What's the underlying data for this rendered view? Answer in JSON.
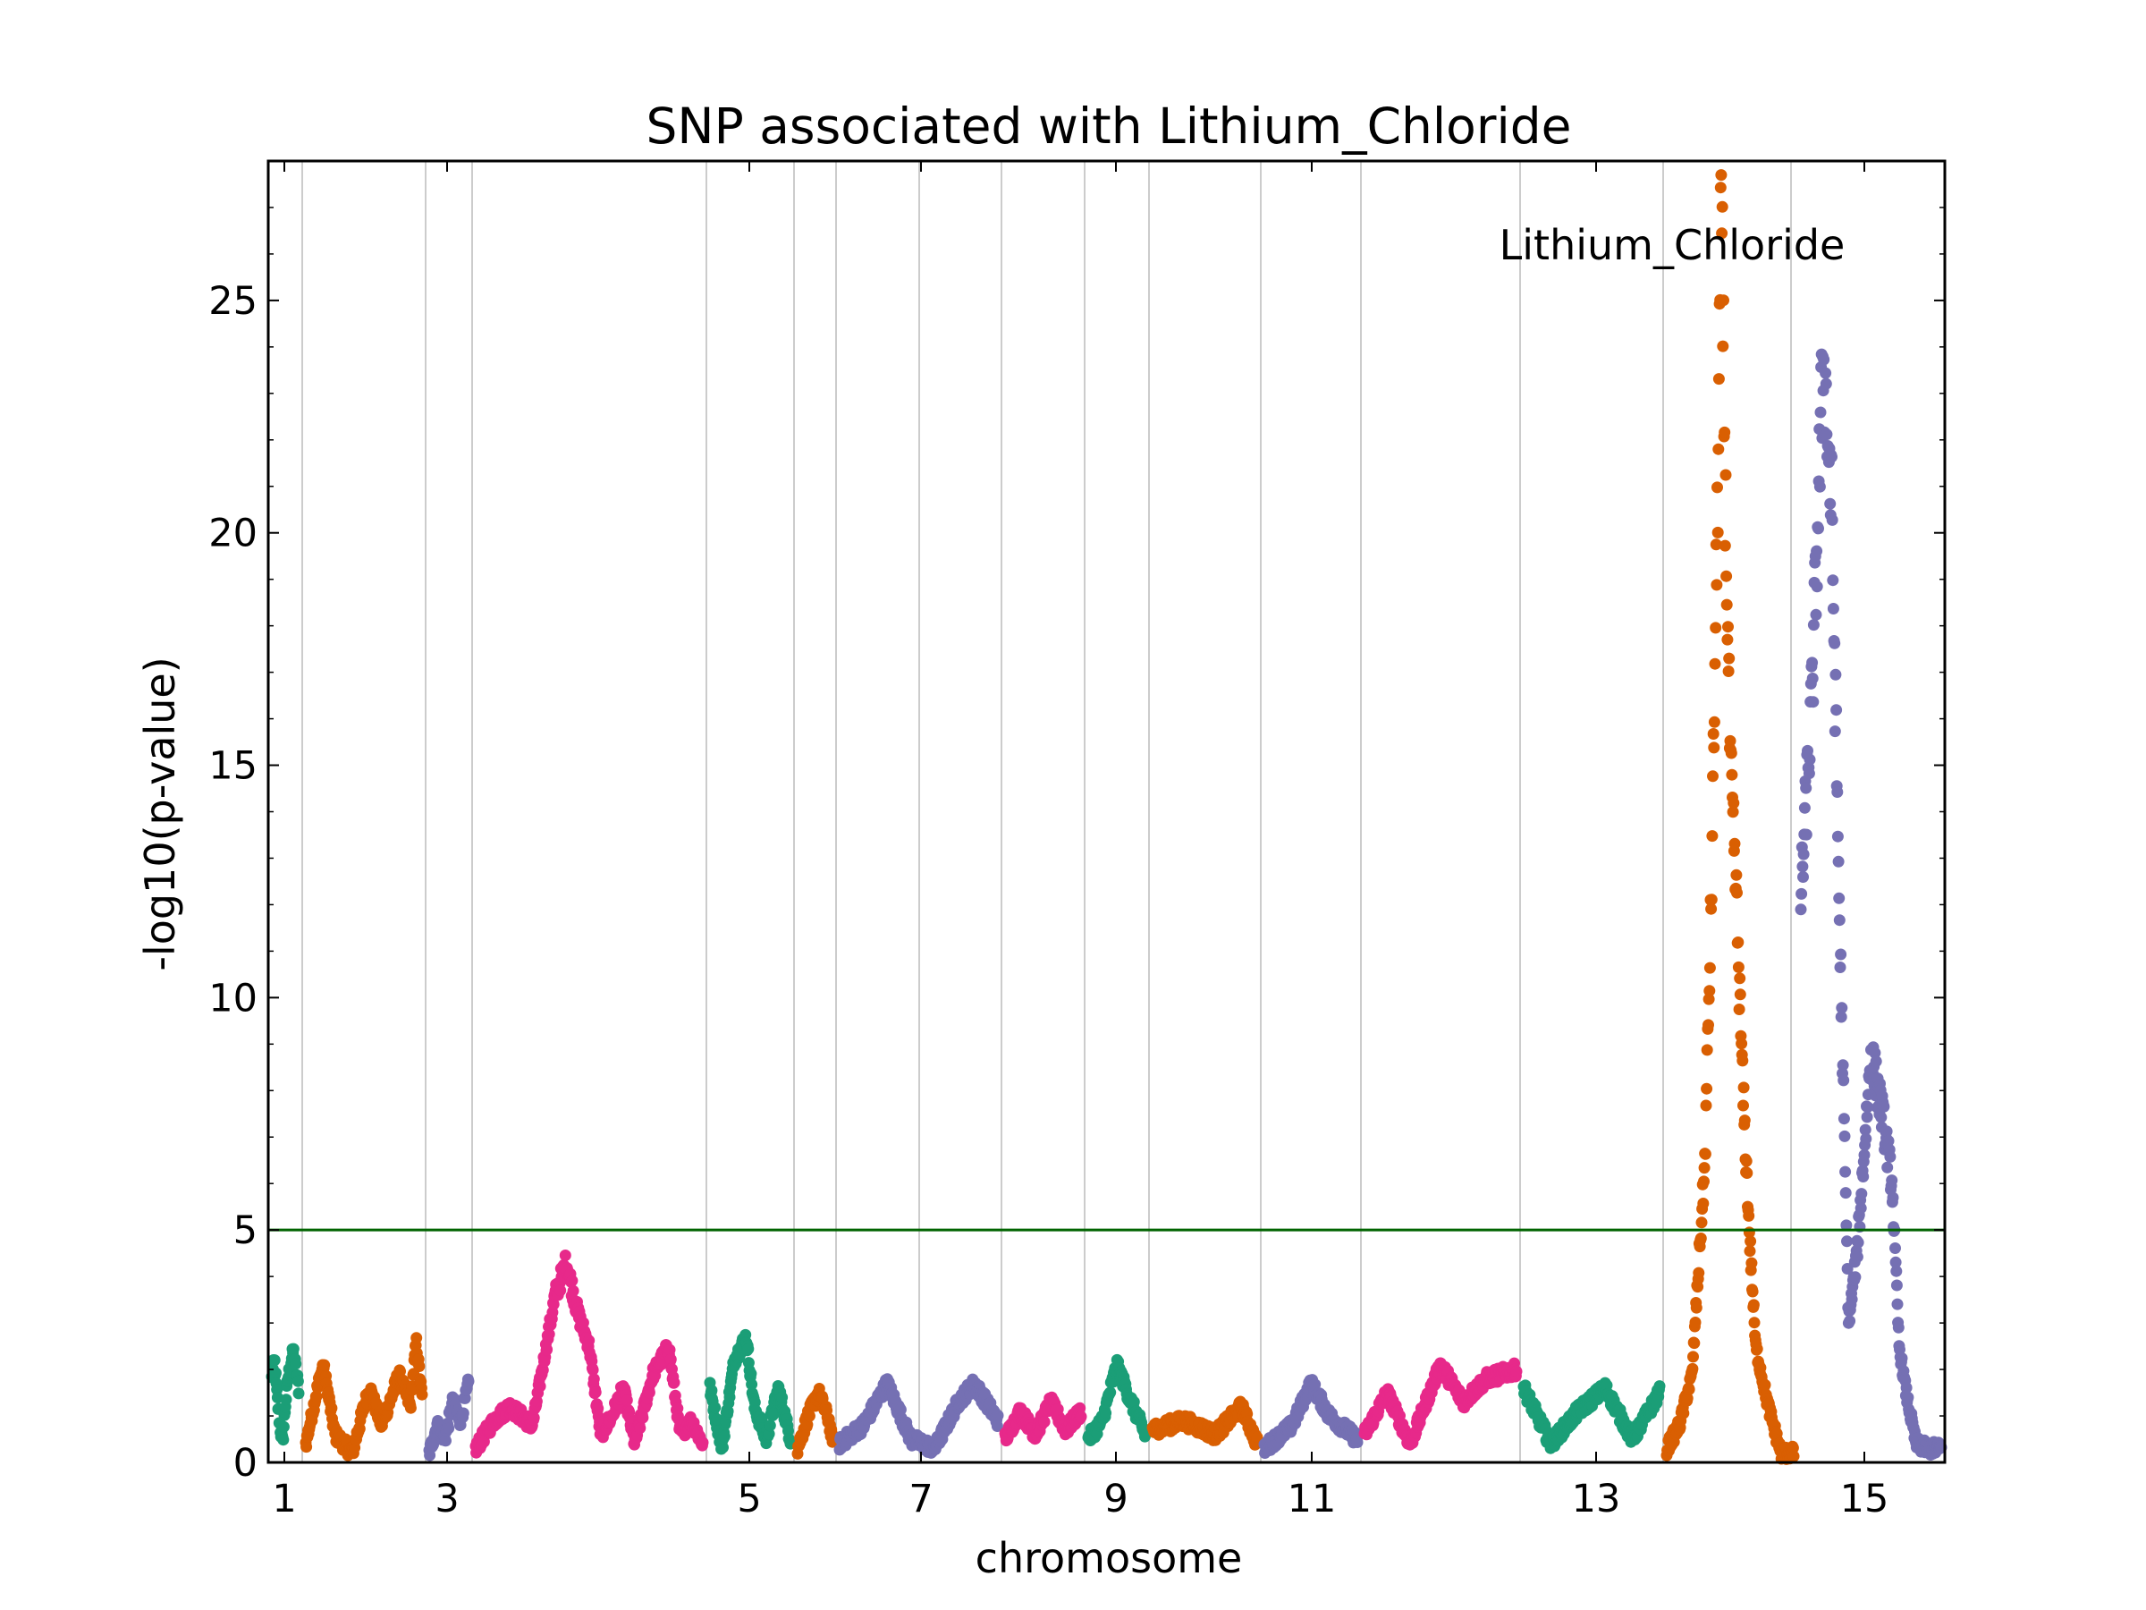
{
  "chart_data": {
    "type": "scatter",
    "title": "SNP associated with Lithium_Chloride",
    "xlabel": "chromosome",
    "ylabel": "-log10(p-value)",
    "ylim": [
      0,
      28
    ],
    "yticks": [
      "0",
      "5",
      "10",
      "15",
      "20",
      "25"
    ],
    "xtick_labels": [
      "1",
      "3",
      "5",
      "7",
      "9",
      "11",
      "13",
      "15"
    ],
    "chromosome_ticks": [
      1,
      3,
      5,
      7,
      9,
      11,
      13,
      15
    ],
    "threshold": 5,
    "threshold_color": "#006400",
    "annotation": "Lithium_Chloride",
    "grid": "vertical lines at chromosome boundaries",
    "colors": [
      "#1b9e77",
      "#d95f02",
      "#7570b3",
      "#e7298a"
    ],
    "series": [
      {
        "chromosome": 1,
        "color": "#1b9e77",
        "peaks": [
          [
            0.0,
            1.8
          ],
          [
            0.1,
            2.2
          ],
          [
            0.2,
            1.4
          ],
          [
            0.3,
            0.8
          ],
          [
            0.4,
            0.4
          ],
          [
            0.5,
            1.2
          ],
          [
            0.6,
            1.8
          ],
          [
            0.8,
            2.4
          ],
          [
            1.0,
            1.6
          ]
        ]
      },
      {
        "chromosome": 2,
        "color": "#d95f02",
        "peaks": [
          [
            0.0,
            0.4
          ],
          [
            0.1,
            1.6
          ],
          [
            0.15,
            2.1
          ],
          [
            0.25,
            0.6
          ],
          [
            0.4,
            0.2
          ],
          [
            0.5,
            1.2
          ],
          [
            0.55,
            1.6
          ],
          [
            0.65,
            0.8
          ],
          [
            0.75,
            1.5
          ],
          [
            0.8,
            1.9
          ],
          [
            0.9,
            1.2
          ],
          [
            0.95,
            2.6
          ],
          [
            1.0,
            1.4
          ]
        ]
      },
      {
        "chromosome": 3,
        "color": "#7570b3",
        "peaks": [
          [
            0.0,
            0.2
          ],
          [
            0.2,
            0.8
          ],
          [
            0.4,
            0.5
          ],
          [
            0.6,
            1.3
          ],
          [
            0.8,
            0.9
          ],
          [
            1.0,
            1.7
          ]
        ]
      },
      {
        "chromosome": 4,
        "color": "#e7298a",
        "peaks": [
          [
            0.0,
            0.3
          ],
          [
            0.08,
            0.9
          ],
          [
            0.15,
            1.2
          ],
          [
            0.25,
            0.8
          ],
          [
            0.3,
            2.2
          ],
          [
            0.35,
            3.6
          ],
          [
            0.4,
            4.3
          ],
          [
            0.45,
            3.2
          ],
          [
            0.5,
            2.5
          ],
          [
            0.55,
            0.6
          ],
          [
            0.6,
            1.0
          ],
          [
            0.65,
            1.6
          ],
          [
            0.7,
            0.4
          ],
          [
            0.78,
            1.9
          ],
          [
            0.85,
            2.5
          ],
          [
            0.9,
            0.6
          ],
          [
            0.95,
            0.9
          ],
          [
            1.0,
            0.4
          ]
        ]
      },
      {
        "chromosome": 5,
        "color": "#1b9e77",
        "peaks": [
          [
            0.0,
            1.6
          ],
          [
            0.15,
            0.3
          ],
          [
            0.3,
            2.2
          ],
          [
            0.45,
            2.7
          ],
          [
            0.55,
            1.2
          ],
          [
            0.7,
            0.5
          ],
          [
            0.85,
            1.6
          ],
          [
            1.0,
            0.5
          ]
        ]
      },
      {
        "chromosome": 6,
        "color": "#d95f02",
        "peaks": [
          [
            0.0,
            0.3
          ],
          [
            0.3,
            1.0
          ],
          [
            0.6,
            1.5
          ],
          [
            0.9,
            0.9
          ],
          [
            1.0,
            0.4
          ]
        ]
      },
      {
        "chromosome": 7,
        "color": "#7570b3",
        "peaks": [
          [
            0.0,
            0.4
          ],
          [
            0.15,
            0.8
          ],
          [
            0.3,
            1.7
          ],
          [
            0.45,
            0.5
          ],
          [
            0.6,
            0.3
          ],
          [
            0.75,
            1.3
          ],
          [
            0.85,
            1.7
          ],
          [
            1.0,
            0.9
          ]
        ]
      },
      {
        "chromosome": 8,
        "color": "#e7298a",
        "peaks": [
          [
            0.0,
            0.5
          ],
          [
            0.2,
            1.1
          ],
          [
            0.4,
            0.6
          ],
          [
            0.6,
            1.3
          ],
          [
            0.8,
            0.7
          ],
          [
            1.0,
            1.1
          ]
        ]
      },
      {
        "chromosome": 9,
        "color": "#1b9e77",
        "peaks": [
          [
            0.0,
            0.5
          ],
          [
            0.25,
            0.9
          ],
          [
            0.5,
            2.1
          ],
          [
            0.75,
            1.3
          ],
          [
            1.0,
            0.6
          ]
        ]
      },
      {
        "chromosome": 10,
        "color": "#d95f02",
        "peaks": [
          [
            0.0,
            0.7
          ],
          [
            0.3,
            0.9
          ],
          [
            0.6,
            0.6
          ],
          [
            0.85,
            1.2
          ],
          [
            1.0,
            0.4
          ]
        ]
      },
      {
        "chromosome": 11,
        "color": "#7570b3",
        "peaks": [
          [
            0.0,
            0.3
          ],
          [
            0.3,
            0.8
          ],
          [
            0.5,
            1.7
          ],
          [
            0.7,
            1.0
          ],
          [
            1.0,
            0.5
          ]
        ]
      },
      {
        "chromosome": 12,
        "color": "#e7298a",
        "peaks": [
          [
            0.0,
            0.6
          ],
          [
            0.15,
            1.5
          ],
          [
            0.3,
            0.4
          ],
          [
            0.5,
            2.1
          ],
          [
            0.65,
            1.3
          ],
          [
            0.8,
            1.8
          ],
          [
            1.0,
            2.0
          ]
        ]
      },
      {
        "chromosome": 13,
        "color": "#1b9e77",
        "peaks": [
          [
            0.0,
            1.6
          ],
          [
            0.2,
            0.4
          ],
          [
            0.4,
            1.1
          ],
          [
            0.6,
            1.6
          ],
          [
            0.8,
            0.5
          ],
          [
            1.0,
            1.5
          ]
        ]
      },
      {
        "chromosome": 14,
        "color": "#d95f02",
        "peaks": [
          [
            0.0,
            0.3
          ],
          [
            0.1,
            0.8
          ],
          [
            0.2,
            1.9
          ],
          [
            0.3,
            6.4
          ],
          [
            0.35,
            12.0
          ],
          [
            0.4,
            20.5
          ],
          [
            0.43,
            27.2
          ],
          [
            0.46,
            21.0
          ],
          [
            0.5,
            15.0
          ],
          [
            0.55,
            12.0
          ],
          [
            0.6,
            8.0
          ],
          [
            0.65,
            5.0
          ],
          [
            0.7,
            2.5
          ],
          [
            0.8,
            1.2
          ],
          [
            0.9,
            0.2
          ]
        ]
      },
      {
        "chromosome": 15,
        "color": "#7570b3",
        "peaks": [
          [
            0.0,
            12.1
          ],
          [
            0.08,
            16.5
          ],
          [
            0.16,
            23.8
          ],
          [
            0.22,
            20.5
          ],
          [
            0.28,
            11.0
          ],
          [
            0.34,
            3.0
          ],
          [
            0.4,
            4.5
          ],
          [
            0.5,
            8.8
          ],
          [
            0.58,
            7.5
          ],
          [
            0.65,
            6.0
          ],
          [
            0.7,
            2.5
          ],
          [
            0.75,
            1.5
          ],
          [
            0.82,
            0.4
          ],
          [
            0.9,
            0.3
          ],
          [
            1.0,
            0.3
          ]
        ]
      }
    ]
  }
}
